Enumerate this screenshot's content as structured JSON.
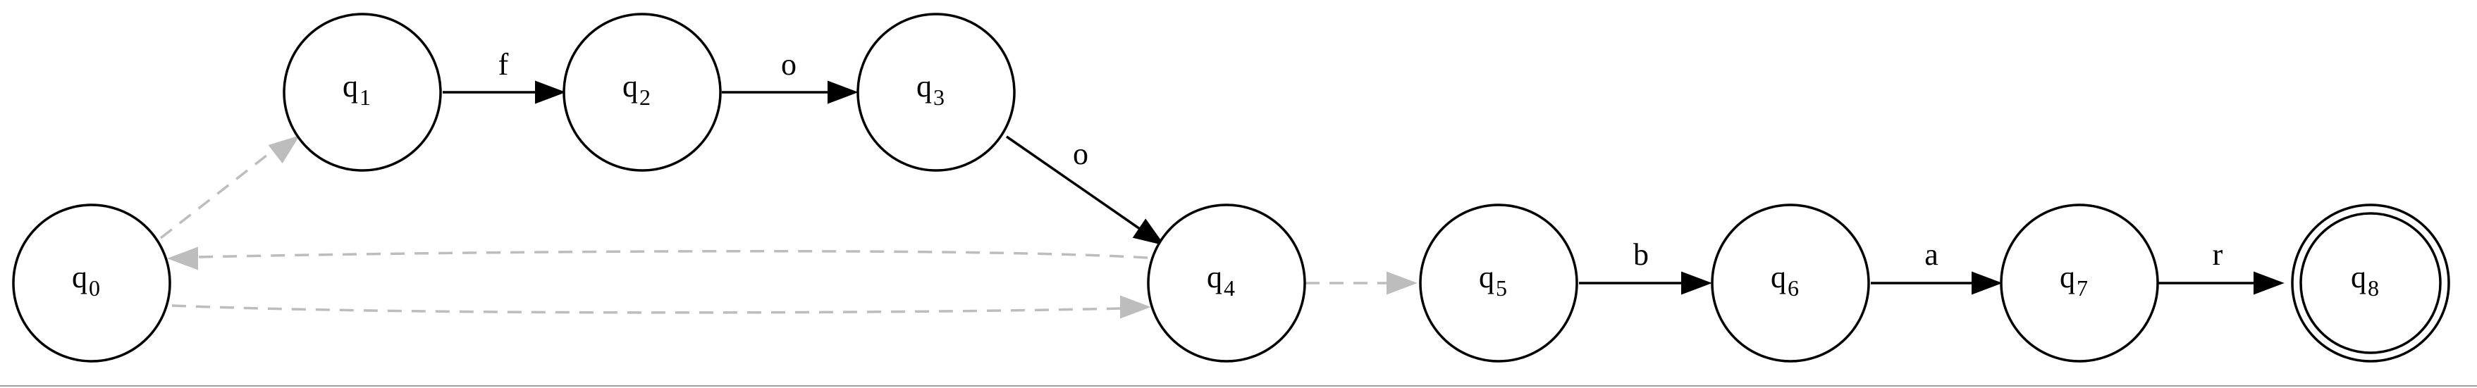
{
  "automaton": {
    "states": [
      {
        "id": "q0",
        "base": "q",
        "sub": "0",
        "accepting": false
      },
      {
        "id": "q1",
        "base": "q",
        "sub": "1",
        "accepting": false
      },
      {
        "id": "q2",
        "base": "q",
        "sub": "2",
        "accepting": false
      },
      {
        "id": "q3",
        "base": "q",
        "sub": "3",
        "accepting": false
      },
      {
        "id": "q4",
        "base": "q",
        "sub": "4",
        "accepting": false
      },
      {
        "id": "q5",
        "base": "q",
        "sub": "5",
        "accepting": false
      },
      {
        "id": "q6",
        "base": "q",
        "sub": "6",
        "accepting": false
      },
      {
        "id": "q7",
        "base": "q",
        "sub": "7",
        "accepting": false
      },
      {
        "id": "q8",
        "base": "q",
        "sub": "8",
        "accepting": true
      }
    ],
    "transitions": [
      {
        "from": "q0",
        "to": "q1",
        "label": "",
        "style": "dashed"
      },
      {
        "from": "q1",
        "to": "q2",
        "label": "f",
        "style": "solid"
      },
      {
        "from": "q2",
        "to": "q3",
        "label": "o",
        "style": "solid"
      },
      {
        "from": "q3",
        "to": "q4",
        "label": "o",
        "style": "solid"
      },
      {
        "from": "q4",
        "to": "q0",
        "label": "",
        "style": "dashed"
      },
      {
        "from": "q0",
        "to": "q4",
        "label": "",
        "style": "dashed"
      },
      {
        "from": "q4",
        "to": "q5",
        "label": "",
        "style": "dashed"
      },
      {
        "from": "q5",
        "to": "q6",
        "label": "b",
        "style": "solid"
      },
      {
        "from": "q6",
        "to": "q7",
        "label": "a",
        "style": "solid"
      },
      {
        "from": "q7",
        "to": "q8",
        "label": "r",
        "style": "solid"
      }
    ]
  },
  "colors": {
    "solid_edge": "#000000",
    "dashed_edge": "#bdbdbd",
    "node_stroke": "#000000",
    "background": "#ffffff"
  }
}
